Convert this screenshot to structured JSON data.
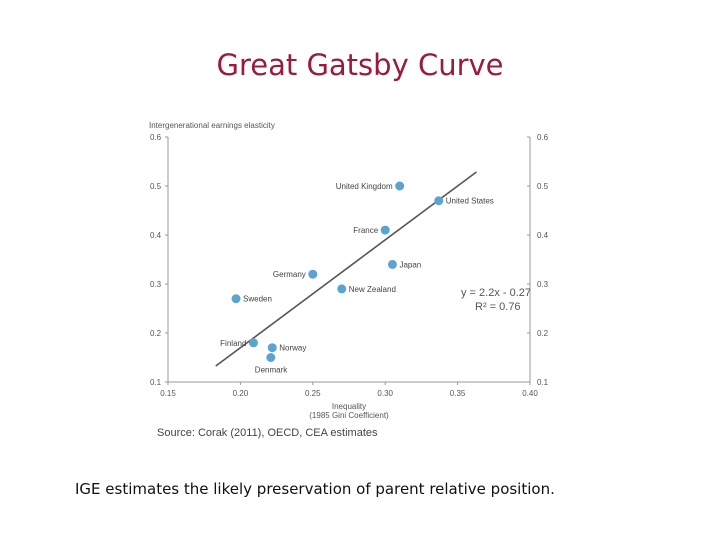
{
  "slide": {
    "title": "Great Gatsby Curve",
    "caption": "IGE estimates the likely preservation of parent relative position."
  },
  "chart_data": {
    "type": "scatter",
    "title": "",
    "ylabel": "Intergenerational earnings elasticity",
    "xlabel": "Inequality",
    "xlabel_sub": "(1985 Gini Coefficient)",
    "xlim": [
      0.15,
      0.4
    ],
    "ylim": [
      0.1,
      0.6
    ],
    "x_ticks": [
      "0.15",
      "0.20",
      "0.25",
      "0.30",
      "0.35",
      "0.40"
    ],
    "y_ticks": [
      "0.1",
      "0.2",
      "0.3",
      "0.4",
      "0.5",
      "0.6"
    ],
    "grid": false,
    "points": [
      {
        "label": "United Kingdom",
        "x": 0.31,
        "y": 0.5,
        "label_side": "left"
      },
      {
        "label": "United States",
        "x": 0.337,
        "y": 0.47,
        "label_side": "right"
      },
      {
        "label": "France",
        "x": 0.3,
        "y": 0.41,
        "label_side": "left"
      },
      {
        "label": "Japan",
        "x": 0.305,
        "y": 0.34,
        "label_side": "right"
      },
      {
        "label": "Germany",
        "x": 0.25,
        "y": 0.32,
        "label_side": "left"
      },
      {
        "label": "New Zealand",
        "x": 0.27,
        "y": 0.29,
        "label_side": "right"
      },
      {
        "label": "Sweden",
        "x": 0.197,
        "y": 0.27,
        "label_side": "right"
      },
      {
        "label": "Finland",
        "x": 0.209,
        "y": 0.18,
        "label_side": "left"
      },
      {
        "label": "Norway",
        "x": 0.222,
        "y": 0.17,
        "label_side": "right"
      },
      {
        "label": "Denmark",
        "x": 0.221,
        "y": 0.15,
        "label_side": "below"
      }
    ],
    "trendline": {
      "equation": "y = 2.2x - 0.27",
      "r_squared": "R² = 0.76",
      "x_range": [
        0.183,
        0.363
      ]
    },
    "colors": {
      "point": "#5ba3d0",
      "line": "#555555",
      "axis": "#999999"
    },
    "source": "Source: Corak (2011), OECD, CEA estimates"
  }
}
